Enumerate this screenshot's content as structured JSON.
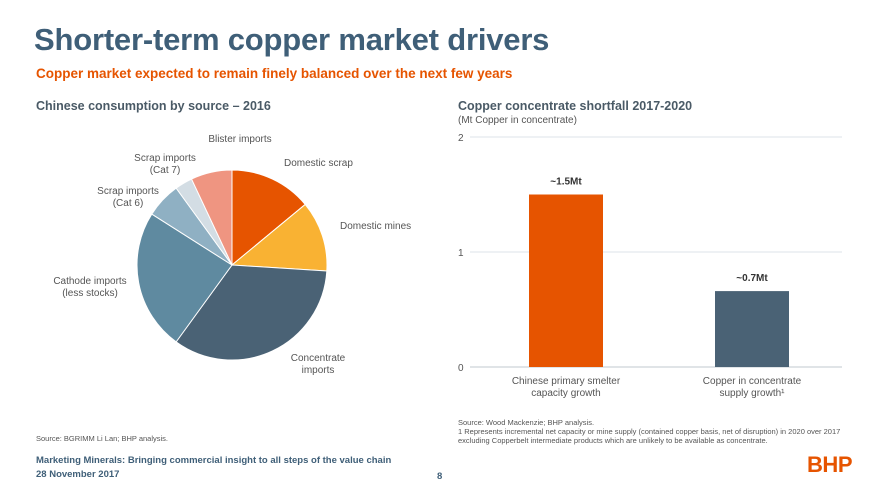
{
  "title": "Shorter-term copper market drivers",
  "subtitle": "Copper market expected to remain finely balanced over the next few years",
  "chart_data": [
    {
      "type": "pie",
      "title": "Chinese consumption by source – 2016",
      "slices": [
        {
          "label": "Domestic scrap",
          "value": 14,
          "color": "#e65400"
        },
        {
          "label": "Domestic mines",
          "value": 12,
          "color": "#f9b233"
        },
        {
          "label": "Concentrate imports",
          "value": 34,
          "color": "#4a6275"
        },
        {
          "label": "Cathode imports (less stocks)",
          "value": 24,
          "color": "#5f8aa0"
        },
        {
          "label": "Scrap imports (Cat 6)",
          "value": 6,
          "color": "#8fb0c3"
        },
        {
          "label": "Scrap imports (Cat 7)",
          "value": 3,
          "color": "#d3dde4"
        },
        {
          "label": "Blister imports",
          "value": 7,
          "color": "#ef9581"
        }
      ],
      "label_lines": [
        [
          "Domestic scrap"
        ],
        [
          "Domestic mines"
        ],
        [
          "Concentrate",
          "imports"
        ],
        [
          "Cathode imports",
          "(less stocks)"
        ],
        [
          "Scrap imports",
          "(Cat 6)"
        ],
        [
          "Scrap imports",
          "(Cat 7)"
        ],
        [
          "Blister imports"
        ]
      ],
      "source": "Source:   BGRIMM Li Lan; BHP analysis."
    },
    {
      "type": "bar",
      "title": "Copper concentrate shortfall 2017-2020",
      "subtitle": "(Mt Copper in concentrate)",
      "categories": [
        "Chinese primary smelter capacity growth",
        "Copper in concentrate supply growth¹"
      ],
      "category_lines": [
        [
          "Chinese primary smelter",
          "capacity growth"
        ],
        [
          "Copper in concentrate",
          "supply growth¹"
        ]
      ],
      "values": [
        1.5,
        0.66
      ],
      "data_labels": [
        "~1.5Mt",
        "~0.7Mt"
      ],
      "colors": [
        "#e65400",
        "#4a6275"
      ],
      "ylim": [
        0,
        2
      ],
      "yticks": [
        "0",
        "1",
        "2"
      ],
      "grid": true,
      "source": "Source:   Wood Mackenzie; BHP analysis.",
      "footnote": "1   Represents incremental net capacity or mine supply (contained copper basis, net of disruption) in 2020 over 2017 excluding Copperbelt intermediate products which are unlikely to be available as concentrate."
    }
  ],
  "footer": {
    "line1": "Marketing Minerals: Bringing commercial insight to all steps of the value chain",
    "line2": "28 November 2017",
    "page": "8",
    "logo": "BHP"
  }
}
